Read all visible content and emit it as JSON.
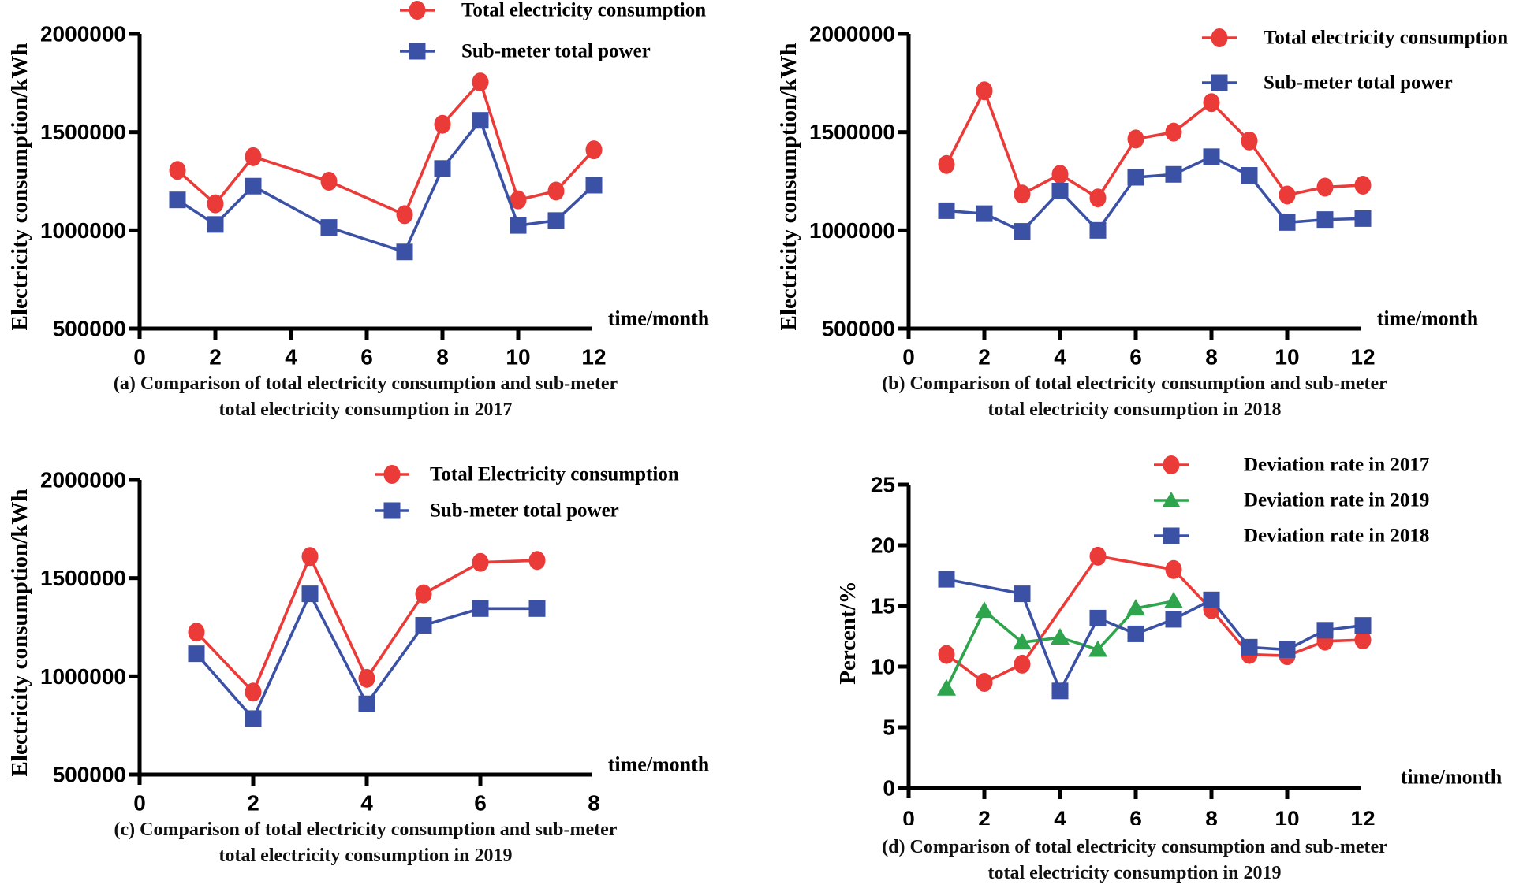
{
  "figure": {
    "background": "#ffffff",
    "text_color": "#000000",
    "accent_colors": {
      "red": "#EB3B38",
      "blue": "#3B51A6",
      "green": "#2EA44C"
    }
  },
  "chart_data": [
    {
      "id": "a",
      "type": "line",
      "caption_lines": [
        "(a) Comparison of total electricity consumption and sub-meter",
        "total electricity consumption in 2017"
      ],
      "xlabel": "time/month",
      "ylabel": "Electricity consumption/kWh",
      "xlim": [
        0,
        12
      ],
      "xticks": [
        0,
        2,
        4,
        6,
        8,
        10,
        12
      ],
      "ylim": [
        500000,
        2000000
      ],
      "yticks": [
        500000,
        1000000,
        1500000,
        2000000
      ],
      "ytick_labels": [
        "500000",
        "1000000",
        "1500000",
        "2000000"
      ],
      "grid": false,
      "legend_position": "top-right-inside",
      "series": [
        {
          "name": "Total electricity consumption",
          "color": "#EB3B38",
          "marker": "circle",
          "x": [
            1,
            2,
            3,
            5,
            7,
            8,
            9,
            10,
            11,
            12
          ],
          "y": [
            1305000,
            1135000,
            1375000,
            1250000,
            1080000,
            1540000,
            1755000,
            1155000,
            1200000,
            1410000
          ]
        },
        {
          "name": "Sub-meter total power",
          "color": "#3B51A6",
          "marker": "square",
          "x": [
            1,
            2,
            3,
            5,
            7,
            8,
            9,
            10,
            11,
            12
          ],
          "y": [
            1155000,
            1030000,
            1225000,
            1015000,
            890000,
            1315000,
            1560000,
            1025000,
            1050000,
            1230000
          ]
        }
      ]
    },
    {
      "id": "b",
      "type": "line",
      "caption_lines": [
        "(b) Comparison of total electricity consumption and sub-meter",
        "total electricity consumption in 2018"
      ],
      "xlabel": "time/month",
      "ylabel": "Electricity consumption/kWh",
      "xlim": [
        0,
        12
      ],
      "xticks": [
        0,
        2,
        4,
        6,
        8,
        10,
        12
      ],
      "ylim": [
        500000,
        2000000
      ],
      "yticks": [
        500000,
        1000000,
        1500000,
        2000000
      ],
      "ytick_labels": [
        "500000",
        "1000000",
        "1500000",
        "2000000"
      ],
      "grid": false,
      "legend_position": "top-right-inside",
      "series": [
        {
          "name": "Total electricity consumption",
          "color": "#EB3B38",
          "marker": "circle",
          "x": [
            1,
            2,
            3,
            4,
            5,
            6,
            7,
            8,
            9,
            10,
            11,
            12
          ],
          "y": [
            1335000,
            1710000,
            1185000,
            1285000,
            1165000,
            1465000,
            1500000,
            1650000,
            1455000,
            1180000,
            1220000,
            1230000
          ]
        },
        {
          "name": "Sub-meter total power",
          "color": "#3B51A6",
          "marker": "square",
          "x": [
            1,
            2,
            3,
            4,
            5,
            6,
            7,
            8,
            9,
            10,
            11,
            12
          ],
          "y": [
            1100000,
            1085000,
            995000,
            1200000,
            1000000,
            1270000,
            1285000,
            1375000,
            1280000,
            1040000,
            1055000,
            1060000
          ]
        }
      ]
    },
    {
      "id": "c",
      "type": "line",
      "caption_lines": [
        "(c) Comparison of total electricity consumption and sub-meter",
        "total electricity consumption in 2019"
      ],
      "xlabel": "time/month",
      "ylabel": "Electricity consumption/kWh",
      "xlim": [
        0,
        8
      ],
      "xticks": [
        0,
        2,
        4,
        6,
        8
      ],
      "ylim": [
        500000,
        2000000
      ],
      "yticks": [
        500000,
        1000000,
        1500000,
        2000000
      ],
      "ytick_labels": [
        "500000",
        "1000000",
        "1500000",
        "2000000"
      ],
      "grid": false,
      "legend_position": "top-right-inside",
      "series": [
        {
          "name": "Total Electricity consumption",
          "color": "#EB3B38",
          "marker": "circle",
          "x": [
            1,
            2,
            3,
            4,
            5,
            6,
            7
          ],
          "y": [
            1225000,
            920000,
            1610000,
            990000,
            1420000,
            1580000,
            1590000
          ]
        },
        {
          "name": "Sub-meter total power",
          "color": "#3B51A6",
          "marker": "square",
          "x": [
            1,
            2,
            3,
            4,
            5,
            6,
            7
          ],
          "y": [
            1115000,
            785000,
            1420000,
            860000,
            1260000,
            1345000,
            1345000
          ]
        }
      ]
    },
    {
      "id": "d",
      "type": "line",
      "caption_lines": [
        "(d) Comparison of total electricity consumption and sub-meter",
        "total electricity consumption in 2019"
      ],
      "xlabel": "time/month",
      "ylabel": "Percent/%",
      "xlim": [
        0,
        12
      ],
      "xticks": [
        0,
        2,
        4,
        6,
        8,
        10,
        12
      ],
      "ylim": [
        0,
        25
      ],
      "yticks": [
        0,
        5,
        10,
        15,
        20,
        25
      ],
      "ytick_labels": [
        "0",
        "5",
        "10",
        "15",
        "20",
        "25"
      ],
      "grid": false,
      "legend_position": "top-right-inside",
      "series": [
        {
          "name": "Deviation rate in 2017",
          "color": "#EB3B38",
          "marker": "circle",
          "x": [
            1,
            2,
            3,
            5,
            7,
            8,
            9,
            10,
            11,
            12
          ],
          "y": [
            11.0,
            8.7,
            10.2,
            19.1,
            18.0,
            14.7,
            11.0,
            10.9,
            12.1,
            12.2
          ]
        },
        {
          "name": "Deviation rate in 2019",
          "color": "#2EA44C",
          "marker": "triangle-up",
          "x": [
            1,
            2,
            3,
            4,
            5,
            6,
            7
          ],
          "y": [
            8.2,
            14.6,
            12.0,
            12.4,
            11.4,
            14.8,
            15.4
          ]
        },
        {
          "name": "Deviation rate in 2018",
          "color": "#3B51A6",
          "marker": "square",
          "x": [
            1,
            3,
            4,
            5,
            6,
            7,
            8,
            9,
            10,
            11,
            12
          ],
          "y": [
            17.2,
            16.0,
            8.0,
            14.0,
            12.7,
            13.9,
            15.5,
            11.6,
            11.4,
            13.0,
            13.4
          ]
        }
      ]
    }
  ]
}
